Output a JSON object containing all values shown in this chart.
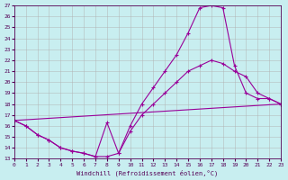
{
  "xlabel": "Windchill (Refroidissement éolien,°C)",
  "xlim": [
    0,
    23
  ],
  "ylim": [
    13,
    27
  ],
  "xticks": [
    0,
    1,
    2,
    3,
    4,
    5,
    6,
    7,
    8,
    9,
    10,
    11,
    12,
    13,
    14,
    15,
    16,
    17,
    18,
    19,
    20,
    21,
    22,
    23
  ],
  "yticks": [
    13,
    14,
    15,
    16,
    17,
    18,
    19,
    20,
    21,
    22,
    23,
    24,
    25,
    26,
    27
  ],
  "background_color": "#c8eef0",
  "grid_color": "#b0b0b0",
  "line_color": "#990099",
  "curve1_x": [
    0,
    1,
    2,
    3,
    4,
    5,
    6,
    7,
    8,
    9,
    10,
    11,
    12,
    13,
    14,
    15,
    16,
    17,
    18,
    19,
    20,
    21,
    22,
    23
  ],
  "curve1_y": [
    16.5,
    16.0,
    15.2,
    14.7,
    14.0,
    13.7,
    13.5,
    13.2,
    13.2,
    13.5,
    16.0,
    18.0,
    19.5,
    21.0,
    22.5,
    24.5,
    26.8,
    27.0,
    26.8,
    21.5,
    19.0,
    18.5,
    18.5,
    18.0
  ],
  "curve2_x": [
    0,
    1,
    2,
    3,
    4,
    5,
    6,
    7,
    8,
    9,
    10,
    11,
    12,
    13,
    14,
    15,
    16,
    17,
    18,
    19,
    20,
    21,
    22,
    23
  ],
  "curve2_y": [
    16.5,
    16.0,
    15.2,
    14.7,
    14.0,
    13.7,
    13.5,
    13.2,
    16.3,
    13.5,
    15.5,
    17.0,
    18.0,
    19.0,
    20.0,
    21.0,
    21.5,
    22.0,
    21.7,
    21.0,
    20.5,
    19.0,
    18.5,
    18.0
  ],
  "curve3_x": [
    0,
    23
  ],
  "curve3_y": [
    16.5,
    18.0
  ]
}
